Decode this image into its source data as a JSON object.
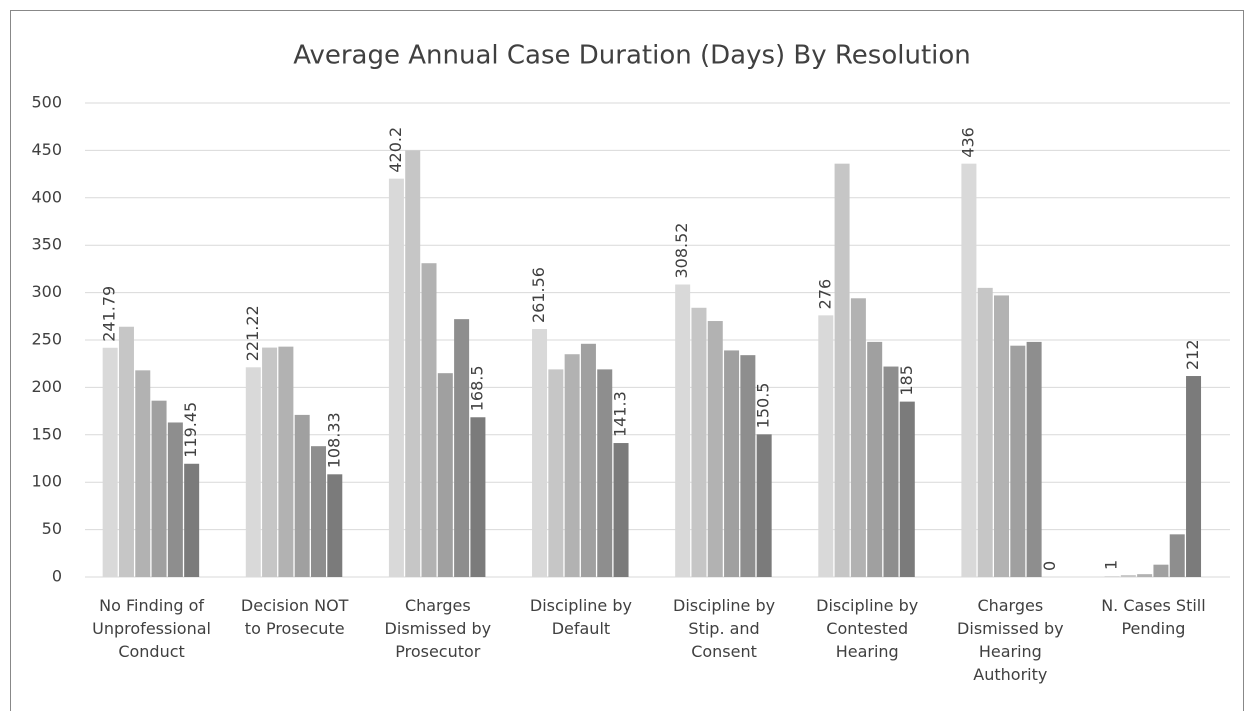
{
  "chart_data": {
    "type": "bar",
    "title": "Average Annual Case Duration (Days) By Resolution",
    "categories": [
      "No Finding of Unprofessional Conduct",
      "Decision NOT to Prosecute",
      "Charges Dismissed by Prosecutor",
      "Discipline by Default",
      "Discipline by Stip. and Consent",
      "Discipline by Contested Hearing",
      "Charges Dismissed by Hearing Authority",
      "N. Cases Still Pending"
    ],
    "series": [
      {
        "color": "#d9d9d9",
        "data_labels": true,
        "values": [
          241.79,
          221.22,
          420.2,
          261.56,
          308.52,
          276,
          436,
          1
        ]
      },
      {
        "color": "#c6c6c6",
        "data_labels": false,
        "values": [
          264,
          242,
          450,
          219,
          284,
          436,
          305,
          2
        ]
      },
      {
        "color": "#b2b2b2",
        "data_labels": false,
        "values": [
          218,
          243,
          331,
          235,
          270,
          294,
          297,
          3
        ]
      },
      {
        "color": "#a0a0a0",
        "data_labels": false,
        "values": [
          186,
          171,
          215,
          246,
          239,
          248,
          244,
          13
        ]
      },
      {
        "color": "#8e8e8e",
        "data_labels": false,
        "values": [
          163,
          138,
          272,
          219,
          234,
          222,
          248,
          45
        ]
      },
      {
        "color": "#7b7b7b",
        "data_labels": true,
        "values": [
          119.45,
          108.33,
          168.5,
          141.3,
          150.5,
          185,
          0,
          212
        ]
      }
    ],
    "ylim": [
      0,
      500
    ],
    "yticks": [
      0,
      50,
      100,
      150,
      200,
      250,
      300,
      350,
      400,
      450,
      500
    ],
    "grid": true
  }
}
